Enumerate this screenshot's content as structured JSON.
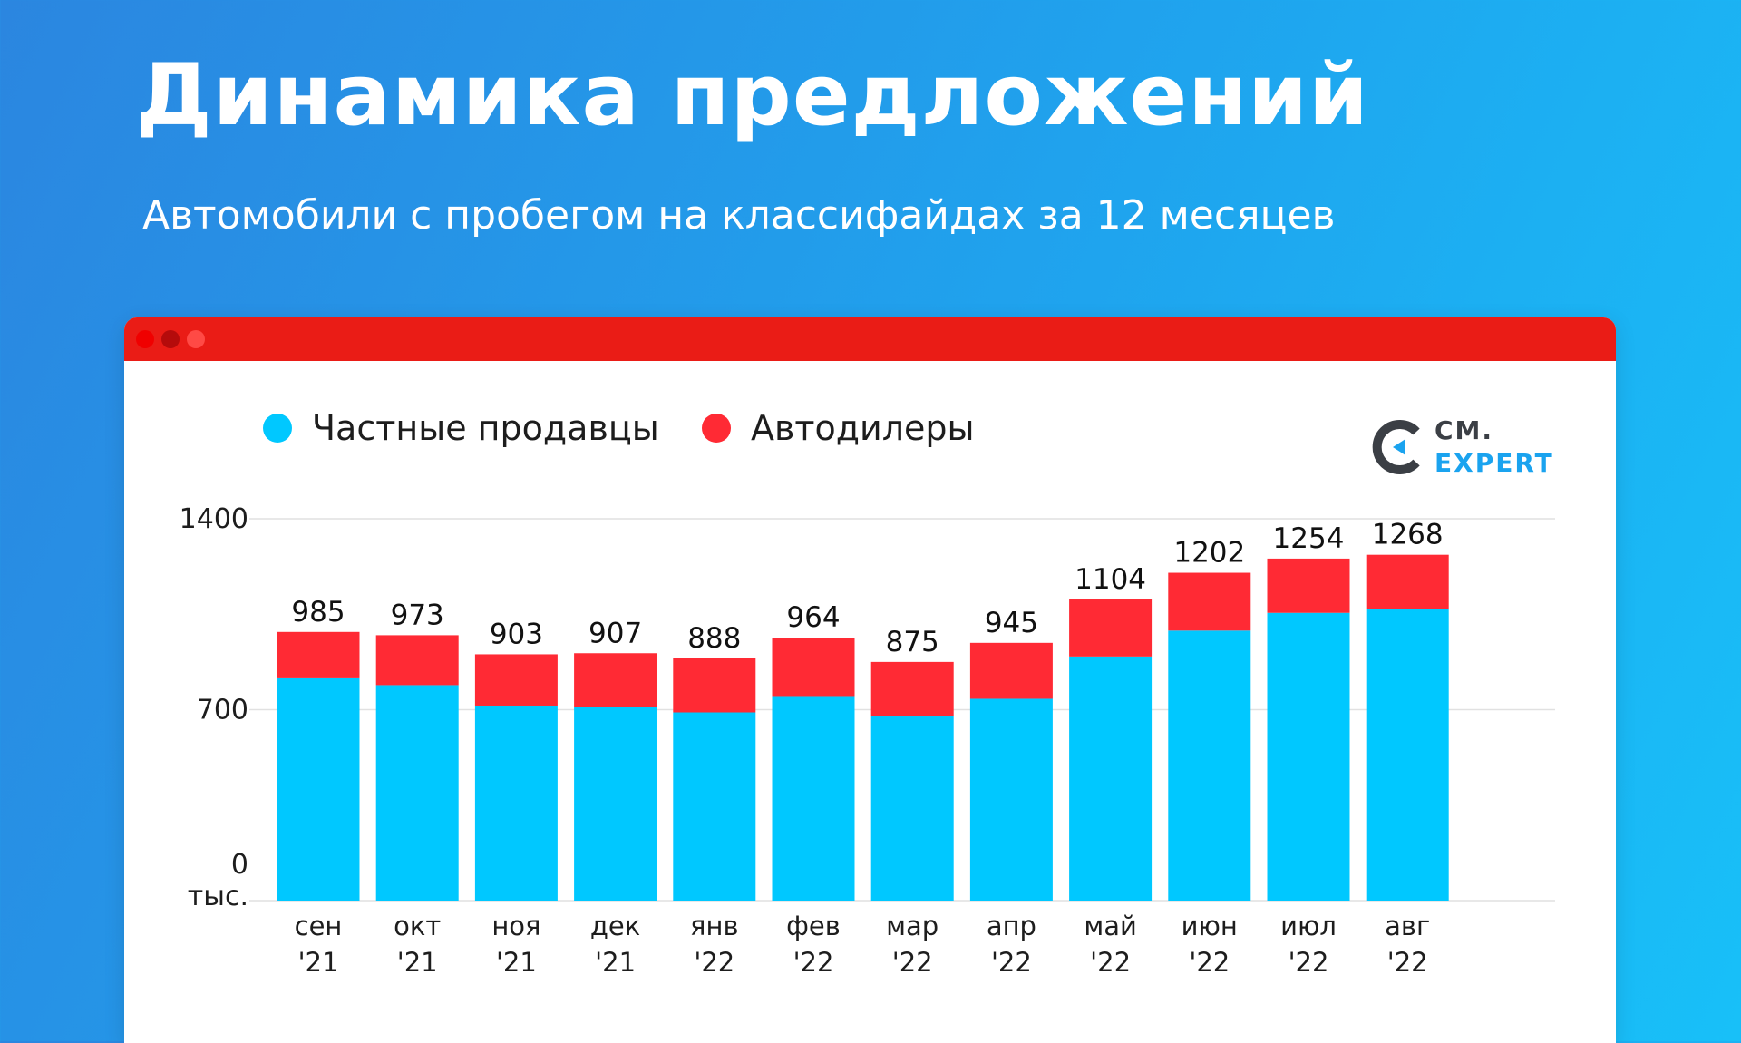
{
  "header": {
    "title": "Динамика предложений",
    "subtitle": "Автомобили с пробегом на классифайдах за 12 месяцев"
  },
  "logo": {
    "line1": "CM.",
    "line2": "EXPERT"
  },
  "colors": {
    "background_start": "#2b86e0",
    "background_end": "#18c0f8",
    "titlebar": "#ea1c16",
    "private": "#00c8ff",
    "dealers": "#ff2a34",
    "grid": "#e1e1e1",
    "logo_dark": "#3b3f45",
    "logo_blue": "#1aa3ef"
  },
  "chart_data": {
    "type": "bar",
    "stacked": true,
    "ylim": [
      0,
      1400
    ],
    "yticks": [
      0,
      700,
      1400
    ],
    "ytick_labels": [
      "0",
      "700",
      "1400"
    ],
    "y_unit": "тыс.",
    "grid": true,
    "legend_position": "top-left",
    "categories": [
      "сен",
      "окт",
      "ноя",
      "дек",
      "янв",
      "фев",
      "мар",
      "апр",
      "май",
      "июн",
      "июл",
      "авг"
    ],
    "category_years": [
      "'21",
      "'21",
      "'21",
      "'21",
      "'22",
      "'22",
      "'22",
      "'22",
      "'22",
      "'22",
      "'22",
      "'22"
    ],
    "series": [
      {
        "name": "Частные продавцы",
        "color": "#00c8ff",
        "values": [
          815,
          790,
          715,
          710,
          690,
          750,
          675,
          740,
          895,
          990,
          1055,
          1070
        ]
      },
      {
        "name": "Автодилеры",
        "color": "#ff2a34",
        "values": [
          170,
          183,
          188,
          197,
          198,
          214,
          200,
          205,
          209,
          212,
          199,
          198
        ]
      }
    ],
    "totals": [
      985,
      973,
      903,
      907,
      888,
      964,
      875,
      945,
      1104,
      1202,
      1254,
      1268
    ]
  }
}
